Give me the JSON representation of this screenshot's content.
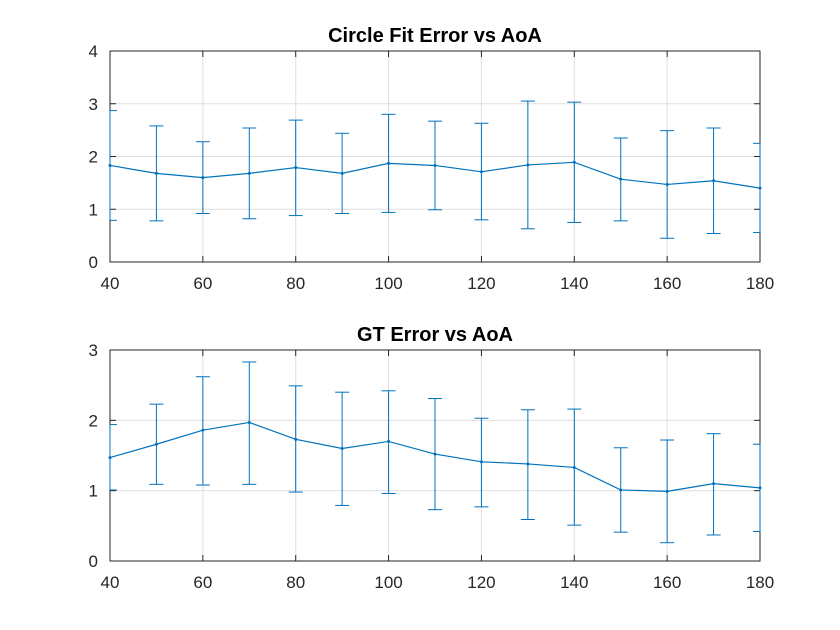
{
  "colors": {
    "series": "#0072bd",
    "axis": "#262626",
    "grid": "#dfdfdf"
  },
  "chart_data": [
    {
      "type": "line",
      "title": "Circle Fit Error vs AoA",
      "xlabel": "",
      "ylabel": "",
      "xlim": [
        40,
        180
      ],
      "ylim": [
        0,
        4
      ],
      "xticks": [
        40,
        60,
        80,
        100,
        120,
        140,
        160,
        180
      ],
      "yticks": [
        0,
        1,
        2,
        3,
        4
      ],
      "grid": true,
      "series": [
        {
          "x": [
            40,
            50,
            60,
            70,
            80,
            90,
            100,
            110,
            120,
            130,
            140,
            150,
            160,
            170,
            180
          ],
          "y": [
            1.83,
            1.68,
            1.6,
            1.68,
            1.79,
            1.68,
            1.87,
            1.83,
            1.71,
            1.84,
            1.89,
            1.57,
            1.47,
            1.54,
            1.4
          ],
          "err_low": [
            0.79,
            0.78,
            0.92,
            0.82,
            0.88,
            0.92,
            0.94,
            0.99,
            0.8,
            0.63,
            0.75,
            0.78,
            0.45,
            0.54,
            0.56
          ],
          "err_high": [
            2.87,
            2.58,
            2.28,
            2.54,
            2.69,
            2.44,
            2.8,
            2.67,
            2.63,
            3.05,
            3.03,
            2.35,
            2.49,
            2.54,
            2.25
          ]
        }
      ]
    },
    {
      "type": "line",
      "title": "GT Error vs AoA",
      "xlabel": "",
      "ylabel": "",
      "xlim": [
        40,
        180
      ],
      "ylim": [
        0,
        3
      ],
      "xticks": [
        40,
        60,
        80,
        100,
        120,
        140,
        160,
        180
      ],
      "yticks": [
        0,
        1,
        2,
        3
      ],
      "grid": true,
      "series": [
        {
          "x": [
            40,
            50,
            60,
            70,
            80,
            90,
            100,
            110,
            120,
            130,
            140,
            150,
            160,
            170,
            180
          ],
          "y": [
            1.47,
            1.66,
            1.86,
            1.97,
            1.73,
            1.6,
            1.7,
            1.52,
            1.41,
            1.38,
            1.33,
            1.01,
            0.99,
            1.1,
            1.04
          ],
          "err_low": [
            1.01,
            1.09,
            1.08,
            1.09,
            0.98,
            0.79,
            0.96,
            0.73,
            0.77,
            0.59,
            0.51,
            0.41,
            0.26,
            0.37,
            0.42
          ],
          "err_high": [
            1.94,
            2.23,
            2.62,
            2.83,
            2.49,
            2.4,
            2.42,
            2.31,
            2.03,
            2.15,
            2.16,
            1.61,
            1.72,
            1.81,
            1.66
          ]
        }
      ]
    }
  ]
}
